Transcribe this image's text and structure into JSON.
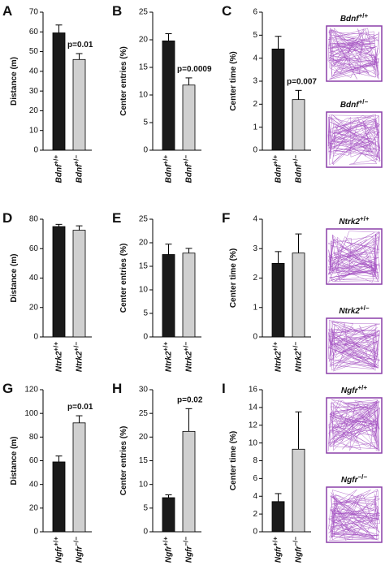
{
  "chart_data": [
    {
      "type": "bar",
      "label": "A",
      "y_label": "Distance (m)",
      "categories": [
        "Bdnf+/+",
        "Bdnf+/−"
      ],
      "values": [
        59.5,
        46
      ],
      "errors": [
        4,
        3
      ],
      "colors": [
        "#1a1a1a",
        "#d0d0d0"
      ],
      "ylim": [
        0,
        70
      ],
      "yticks": [
        0,
        10,
        20,
        30,
        40,
        50,
        60,
        70
      ],
      "annotation": "p=0.01"
    },
    {
      "type": "bar",
      "label": "B",
      "y_label": "Center entries (%)",
      "categories": [
        "Bdnf+/+",
        "Bdnf+/−"
      ],
      "values": [
        19.8,
        11.8
      ],
      "errors": [
        1.3,
        1.3
      ],
      "colors": [
        "#1a1a1a",
        "#d0d0d0"
      ],
      "ylim": [
        0,
        25
      ],
      "yticks": [
        0,
        5,
        10,
        15,
        20,
        25
      ],
      "annotation": "p=0.0009"
    },
    {
      "type": "bar",
      "label": "C",
      "y_label": "Center time (%)",
      "categories": [
        "Bdnf+/+",
        "Bdnf+/−"
      ],
      "values": [
        4.4,
        2.2
      ],
      "errors": [
        0.55,
        0.4
      ],
      "colors": [
        "#1a1a1a",
        "#d0d0d0"
      ],
      "ylim": [
        0,
        6
      ],
      "yticks": [
        0,
        1,
        2,
        3,
        4,
        5,
        6
      ],
      "annotation": "p=0.007"
    },
    {
      "type": "bar",
      "label": "D",
      "y_label": "Distance (m)",
      "categories": [
        "Ntrk2+/+",
        "Ntrk2+/−"
      ],
      "values": [
        75,
        72.5
      ],
      "errors": [
        1.5,
        3
      ],
      "colors": [
        "#1a1a1a",
        "#d0d0d0"
      ],
      "ylim": [
        0,
        80
      ],
      "yticks": [
        0,
        20,
        40,
        60,
        80
      ]
    },
    {
      "type": "bar",
      "label": "E",
      "y_label": "Center entries (%)",
      "categories": [
        "Ntrk2+/+",
        "Ntrk2+/−"
      ],
      "values": [
        17.5,
        17.8
      ],
      "errors": [
        2.2,
        1
      ],
      "colors": [
        "#1a1a1a",
        "#d0d0d0"
      ],
      "ylim": [
        0,
        25
      ],
      "yticks": [
        0,
        5,
        10,
        15,
        20,
        25
      ]
    },
    {
      "type": "bar",
      "label": "F",
      "y_label": "Center time (%)",
      "categories": [
        "Ntrk2+/+",
        "Ntrk2+/−"
      ],
      "values": [
        2.5,
        2.85
      ],
      "errors": [
        0.4,
        0.65
      ],
      "colors": [
        "#1a1a1a",
        "#d0d0d0"
      ],
      "ylim": [
        0,
        4
      ],
      "yticks": [
        0,
        1,
        2,
        3,
        4
      ]
    },
    {
      "type": "bar",
      "label": "G",
      "y_label": "Distance (m)",
      "categories": [
        "Ngfr+/+",
        "Ngfr−/−"
      ],
      "values": [
        59,
        92
      ],
      "errors": [
        5,
        6
      ],
      "colors": [
        "#1a1a1a",
        "#d0d0d0"
      ],
      "ylim": [
        0,
        120
      ],
      "yticks": [
        0,
        20,
        40,
        60,
        80,
        100,
        120
      ],
      "annotation": "p=0.01"
    },
    {
      "type": "bar",
      "label": "H",
      "y_label": "Center entries (%)",
      "categories": [
        "Ngfr+/+",
        "Ngfr−/−"
      ],
      "values": [
        7.2,
        21.2
      ],
      "errors": [
        0.6,
        4.8
      ],
      "colors": [
        "#1a1a1a",
        "#d0d0d0"
      ],
      "ylim": [
        0,
        30
      ],
      "yticks": [
        0,
        5,
        10,
        15,
        20,
        25,
        30
      ],
      "annotation": "p=0.02"
    },
    {
      "type": "bar",
      "label": "I",
      "y_label": "Center time (%)",
      "categories": [
        "Ngfr+/+",
        "Ngfr−/−"
      ],
      "values": [
        3.4,
        9.3
      ],
      "errors": [
        0.9,
        4.2
      ],
      "colors": [
        "#1a1a1a",
        "#d0d0d0"
      ],
      "ylim": [
        0,
        16
      ],
      "yticks": [
        0,
        2,
        4,
        6,
        8,
        10,
        12,
        14,
        16
      ]
    }
  ],
  "tracks": [
    "Bdnf+/+",
    "Bdnf+/−",
    "Ntrk2+/+",
    "Ntrk2+/−",
    "Ngfr+/+",
    "Ngfr−/−"
  ]
}
